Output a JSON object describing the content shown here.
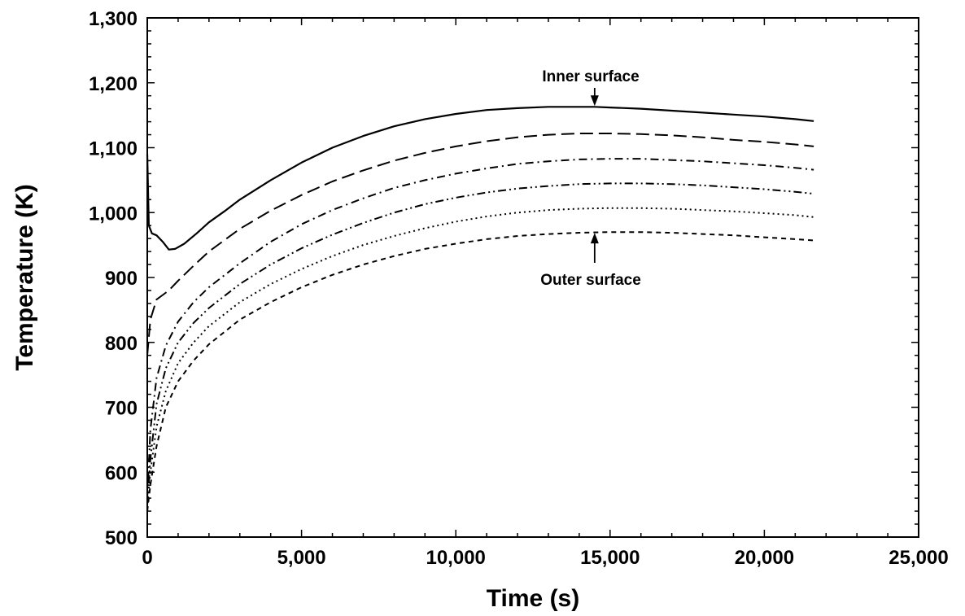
{
  "chart_data": {
    "type": "line",
    "xlabel": "Time (s)",
    "ylabel": "Temperature (K)",
    "xlim": [
      0,
      25000
    ],
    "ylim": [
      500,
      1300
    ],
    "xticks": [
      0,
      5000,
      10000,
      15000,
      20000,
      25000
    ],
    "xtick_labels": [
      "0",
      "5,000",
      "10,000",
      "15,000",
      "20,000",
      "25,000"
    ],
    "yticks": [
      500,
      600,
      700,
      800,
      900,
      1000,
      1100,
      1200,
      1300
    ],
    "ytick_labels": [
      "500",
      "600",
      "700",
      "800",
      "900",
      "1,000",
      "1,100",
      "1,200",
      "1,300"
    ],
    "grid": false,
    "legend": "none",
    "series": [
      {
        "style": "solid",
        "x": [
          0,
          50,
          150,
          300,
          500,
          700,
          900,
          1200,
          1600,
          2000,
          2500,
          3000,
          4000,
          5000,
          6000,
          7000,
          8000,
          9000,
          10000,
          11000,
          12000,
          13000,
          14000,
          14500,
          15000,
          16000,
          17000,
          18000,
          19000,
          20000,
          21000,
          21600
        ],
        "y": [
          1090,
          980,
          968,
          965,
          955,
          943,
          944,
          952,
          968,
          985,
          1002,
          1020,
          1050,
          1077,
          1100,
          1118,
          1133,
          1144,
          1152,
          1158,
          1161,
          1163,
          1163,
          1163,
          1162,
          1160,
          1157,
          1154,
          1151,
          1148,
          1144,
          1141
        ]
      },
      {
        "style": "long-dash",
        "x": [
          0,
          100,
          300,
          500,
          700,
          1000,
          1500,
          2000,
          3000,
          4000,
          5000,
          6000,
          7000,
          8000,
          9000,
          10000,
          11000,
          12000,
          13000,
          14000,
          15000,
          16000,
          17000,
          18000,
          19000,
          20000,
          21000,
          21600
        ],
        "y": [
          780,
          835,
          866,
          873,
          880,
          895,
          918,
          940,
          975,
          1003,
          1027,
          1048,
          1065,
          1080,
          1092,
          1102,
          1110,
          1116,
          1120,
          1122,
          1122,
          1121,
          1119,
          1116,
          1112,
          1109,
          1105,
          1102
        ]
      },
      {
        "style": "dash-dot",
        "x": [
          0,
          100,
          300,
          600,
          1000,
          1500,
          2000,
          3000,
          4000,
          5000,
          6000,
          7000,
          8000,
          9000,
          10000,
          11000,
          12000,
          13000,
          14000,
          15000,
          16000,
          17000,
          18000,
          19000,
          20000,
          21000,
          21600
        ],
        "y": [
          560,
          665,
          745,
          795,
          832,
          862,
          885,
          922,
          955,
          982,
          1004,
          1022,
          1038,
          1050,
          1060,
          1068,
          1075,
          1079,
          1082,
          1083,
          1083,
          1081,
          1079,
          1076,
          1073,
          1069,
          1066
        ]
      },
      {
        "style": "dash-dot-dot",
        "x": [
          0,
          100,
          300,
          600,
          1000,
          1500,
          2000,
          3000,
          4000,
          5000,
          6000,
          7000,
          8000,
          9000,
          10000,
          11000,
          12000,
          13000,
          14000,
          15000,
          16000,
          17000,
          18000,
          19000,
          20000,
          21000,
          21600
        ],
        "y": [
          550,
          620,
          705,
          760,
          800,
          830,
          853,
          890,
          920,
          945,
          966,
          984,
          1000,
          1013,
          1023,
          1031,
          1037,
          1041,
          1044,
          1045,
          1045,
          1044,
          1042,
          1039,
          1036,
          1032,
          1029
        ]
      },
      {
        "style": "dotted",
        "x": [
          0,
          100,
          300,
          600,
          1000,
          1500,
          2000,
          3000,
          4000,
          5000,
          6000,
          7000,
          8000,
          9000,
          10000,
          11000,
          12000,
          13000,
          14000,
          15000,
          16000,
          17000,
          18000,
          19000,
          20000,
          21000,
          21600
        ],
        "y": [
          545,
          600,
          670,
          725,
          768,
          800,
          825,
          862,
          890,
          913,
          933,
          950,
          964,
          976,
          986,
          994,
          1000,
          1004,
          1006,
          1007,
          1007,
          1006,
          1004,
          1002,
          999,
          996,
          993
        ]
      },
      {
        "style": "short-dash",
        "x": [
          0,
          100,
          300,
          600,
          1000,
          1500,
          2000,
          3000,
          4000,
          5000,
          6000,
          7000,
          8000,
          9000,
          10000,
          11000,
          12000,
          13000,
          14000,
          15000,
          16000,
          17000,
          18000,
          19000,
          20000,
          21000,
          21600
        ],
        "y": [
          540,
          580,
          640,
          700,
          740,
          772,
          797,
          835,
          862,
          885,
          904,
          920,
          933,
          944,
          952,
          959,
          964,
          967,
          969,
          970,
          970,
          969,
          967,
          965,
          962,
          959,
          957
        ]
      }
    ],
    "annotations": [
      {
        "text": "Inner surface",
        "arrow_to": [
          14500,
          1163
        ]
      },
      {
        "text": "Outer surface",
        "arrow_to": [
          14500,
          970
        ]
      }
    ]
  }
}
